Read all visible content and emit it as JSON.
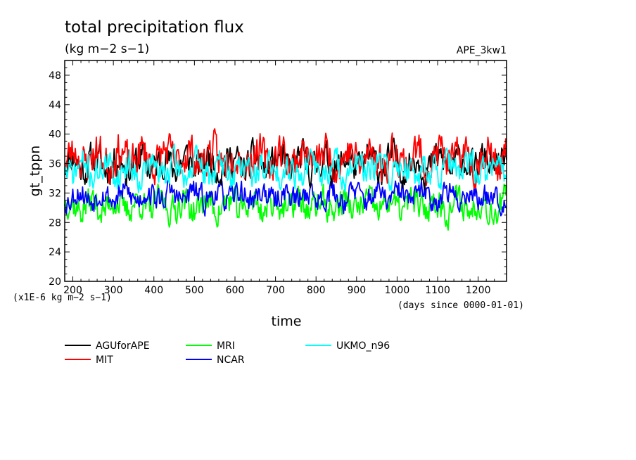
{
  "chart_data": {
    "type": "line",
    "title": "total precipitation flux",
    "units": "(kg m−2 s−1)",
    "run_label": "APE_3kw1",
    "xlabel": "time",
    "x_units": "(days since 0000-01-01)",
    "ylabel": "gt_tppn",
    "y_scale_note": "(x1E-6 kg m−2 s−1)",
    "xlim": [
      180,
      1270
    ],
    "ylim": [
      20,
      50
    ],
    "xticks": [
      200,
      300,
      400,
      500,
      600,
      700,
      800,
      900,
      1000,
      1100,
      1200
    ],
    "yticks": [
      20,
      24,
      28,
      32,
      36,
      40,
      44,
      48
    ],
    "grid": false,
    "legend_position": "bottom",
    "series": [
      {
        "name": "AGUforAPE",
        "color": "#000000",
        "mean": 36.0,
        "amp": 2.4,
        "seed": 11
      },
      {
        "name": "MIT",
        "color": "#ff0000",
        "mean": 36.8,
        "amp": 2.8,
        "seed": 23
      },
      {
        "name": "MRI",
        "color": "#00ff00",
        "mean": 30.3,
        "amp": 2.2,
        "seed": 37
      },
      {
        "name": "NCAR",
        "color": "#0000ff",
        "mean": 31.6,
        "amp": 1.8,
        "seed": 53
      },
      {
        "name": "UKMO_n96",
        "color": "#00ffff",
        "mean": 35.2,
        "amp": 2.2,
        "seed": 71
      }
    ]
  }
}
